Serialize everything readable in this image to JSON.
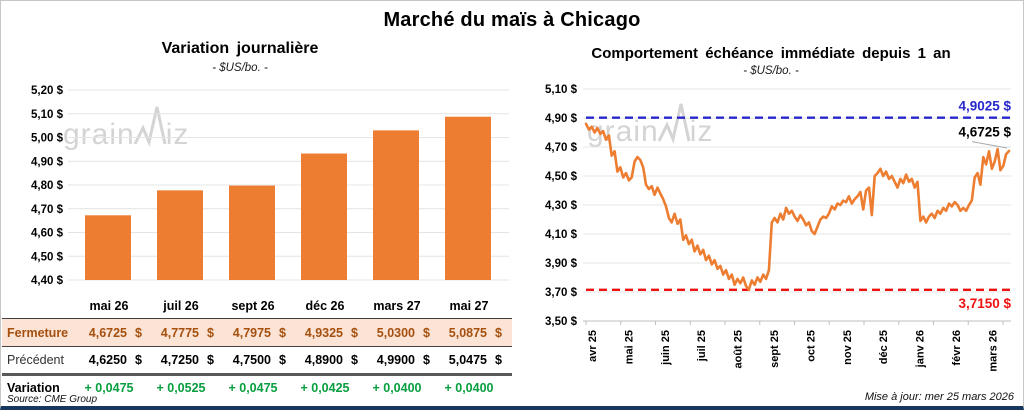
{
  "header": {
    "title": "Marché du maïs à Chicago"
  },
  "colors": {
    "orange": "#ED7D31",
    "blue": "#2727CC",
    "red": "#EE1111",
    "green": "#089E40",
    "rust": "#A5500F",
    "peach": "#FBE3D6",
    "navy": "#17375E",
    "grid": "#E4E4E4",
    "axis": "#BFBFBF",
    "watermark": "#D4D4D4"
  },
  "left_chart": {
    "title": "Variation journalière",
    "subtitle": "- $US/bo. -"
  },
  "right_chart": {
    "title": "Comportement échéance immédiate depuis 1 an",
    "subtitle": "- $US/bo. -"
  },
  "watermark_text": {
    "part1": "grain",
    "part2": "iz"
  },
  "chart_data": [
    {
      "type": "bar",
      "title": "Variation journalière",
      "unit": "$US/bo.",
      "categories": [
        "mai 26",
        "juil 26",
        "sept 26",
        "déc 26",
        "mars 27",
        "mai 27"
      ],
      "values": [
        4.6725,
        4.7775,
        4.7975,
        4.9325,
        5.03,
        5.0875
      ],
      "ylim": [
        4.4,
        5.2
      ],
      "y_tick_labels": [
        "5,20 $",
        "5,10 $",
        "5,00 $",
        "4,90 $",
        "4,80 $",
        "4,70 $",
        "4,60 $",
        "4,50 $",
        "4,40 $"
      ],
      "grid": true,
      "legend": false
    },
    {
      "type": "line",
      "title": "Comportement échéance immédiate depuis 1 an",
      "unit": "$US/bo.",
      "x_labels": [
        "avr 25",
        "mai 25",
        "juin 25",
        "juil 25",
        "août 25",
        "sept 25",
        "oct 25",
        "nov 25",
        "déc 25",
        "janv 26",
        "févr 26",
        "mars 26"
      ],
      "ylim": [
        3.5,
        5.1
      ],
      "y_tick_labels": [
        "5,10 $",
        "4,90 $",
        "4,70 $",
        "4,50 $",
        "4,30 $",
        "4,10 $",
        "3,90 $",
        "3,70 $",
        "3,50 $"
      ],
      "ref_high": 4.9025,
      "ref_low": 3.715,
      "last_value": 4.6725,
      "annotations": {
        "high": "4,9025 $",
        "last": "4,6725 $",
        "low": "3,7150 $"
      },
      "grid": true,
      "legend": false,
      "values": [
        4.86,
        4.82,
        4.84,
        4.8,
        4.83,
        4.79,
        4.81,
        4.75,
        4.78,
        4.64,
        4.67,
        4.53,
        4.56,
        4.49,
        4.52,
        4.47,
        4.49,
        4.6,
        4.63,
        4.61,
        4.56,
        4.44,
        4.41,
        4.43,
        4.37,
        4.42,
        4.38,
        4.34,
        4.29,
        4.21,
        4.18,
        4.24,
        4.17,
        4.2,
        4.06,
        4.09,
        4.03,
        4.06,
        3.98,
        4.02,
        3.96,
        3.99,
        3.92,
        3.95,
        3.89,
        3.92,
        3.86,
        3.88,
        3.82,
        3.85,
        3.79,
        3.82,
        3.75,
        3.79,
        3.76,
        3.8,
        3.74,
        3.715,
        3.78,
        3.75,
        3.8,
        3.77,
        3.82,
        3.79,
        3.85,
        4.18,
        4.21,
        4.18,
        4.24,
        4.2,
        4.28,
        4.24,
        4.26,
        4.22,
        4.19,
        4.23,
        4.2,
        4.16,
        4.18,
        4.12,
        4.1,
        4.15,
        4.2,
        4.22,
        4.21,
        4.24,
        4.29,
        4.27,
        4.31,
        4.3,
        4.33,
        4.32,
        4.36,
        4.31,
        4.34,
        4.36,
        4.39,
        4.27,
        4.4,
        4.42,
        4.23,
        4.5,
        4.52,
        4.55,
        4.5,
        4.53,
        4.48,
        4.5,
        4.46,
        4.42,
        4.48,
        4.45,
        4.51,
        4.46,
        4.48,
        4.42,
        4.46,
        4.19,
        4.22,
        4.18,
        4.22,
        4.24,
        4.21,
        4.26,
        4.24,
        4.28,
        4.26,
        4.31,
        4.29,
        4.32,
        4.3,
        4.26,
        4.28,
        4.26,
        4.3,
        4.33,
        4.49,
        4.52,
        4.44,
        4.63,
        4.58,
        4.67,
        4.55,
        4.6,
        4.685,
        4.54,
        4.57,
        4.65,
        4.6725
      ]
    }
  ],
  "table": {
    "columns": [
      "mai 26",
      "juil 26",
      "sept 26",
      "déc 26",
      "mars 27",
      "mai 27"
    ],
    "rows": [
      {
        "label": "Fermeture",
        "values": [
          "4,6725",
          "4,7775",
          "4,7975",
          "4,9325",
          "5,0300",
          "5,0875"
        ],
        "suffix": "$"
      },
      {
        "label": "Précédent",
        "values": [
          "4,6250",
          "4,7250",
          "4,7500",
          "4,8900",
          "4,9900",
          "5,0475"
        ],
        "suffix": "$"
      },
      {
        "label": "Variation",
        "values": [
          "+ 0,0475",
          "+ 0,0525",
          "+ 0,0475",
          "+ 0,0425",
          "+ 0,0400",
          "+ 0,0400"
        ],
        "suffix": ""
      }
    ]
  },
  "footer": {
    "source": "Source: CME Group",
    "updated": "Mise à jour: mer 25 mars 2026"
  }
}
